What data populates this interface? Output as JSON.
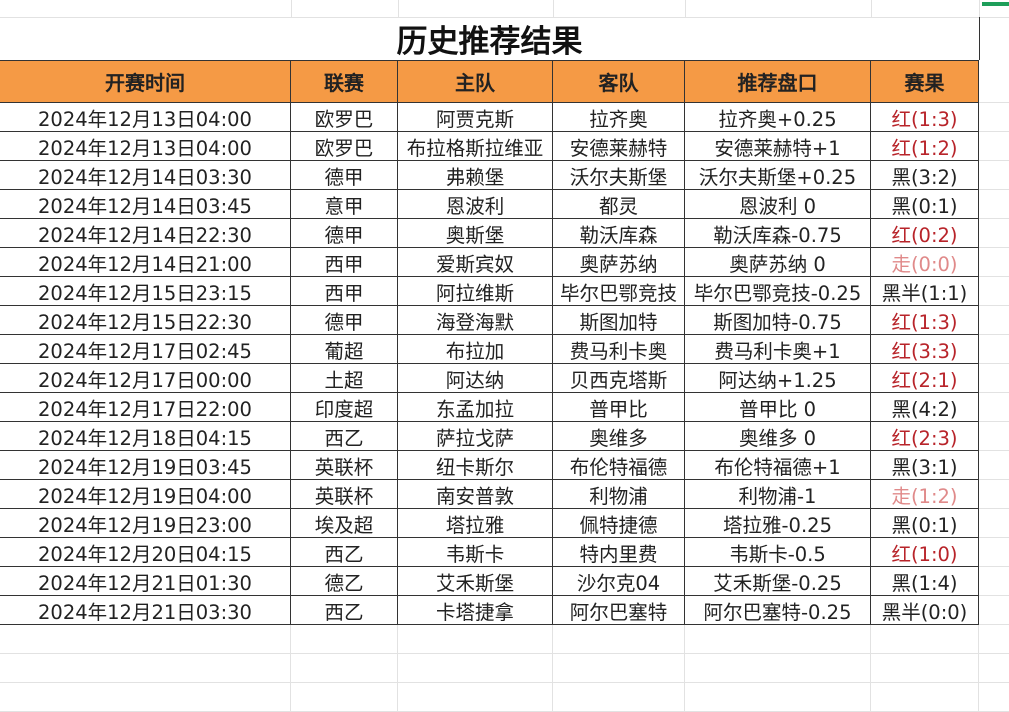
{
  "sheet": {
    "title": "历史推荐结果",
    "columns": [
      "开赛时间",
      "联赛",
      "主队",
      "客队",
      "推荐盘口",
      "赛果"
    ],
    "rows": [
      {
        "time": "2024年12月13日04:00",
        "league": "欧罗巴",
        "home": "阿贾克斯",
        "away": "拉齐奥",
        "pick": "拉齐奥+0.25",
        "result": "红(1:3)",
        "status": "red"
      },
      {
        "time": "2024年12月13日04:00",
        "league": "欧罗巴",
        "home": "布拉格斯拉维亚",
        "away": "安德莱赫特",
        "pick": "安德莱赫特+1",
        "result": "红(1:2)",
        "status": "red"
      },
      {
        "time": "2024年12月14日03:30",
        "league": "德甲",
        "home": "弗赖堡",
        "away": "沃尔夫斯堡",
        "pick": "沃尔夫斯堡+0.25",
        "result": "黑(3:2)",
        "status": "black"
      },
      {
        "time": "2024年12月14日03:45",
        "league": "意甲",
        "home": "恩波利",
        "away": "都灵",
        "pick": "恩波利 0",
        "result": "黑(0:1)",
        "status": "black"
      },
      {
        "time": "2024年12月14日22:30",
        "league": "德甲",
        "home": "奥斯堡",
        "away": "勒沃库森",
        "pick": "勒沃库森-0.75",
        "result": "红(0:2)",
        "status": "red"
      },
      {
        "time": "2024年12月14日21:00",
        "league": "西甲",
        "home": "爱斯宾奴",
        "away": "奥萨苏纳",
        "pick": "奥萨苏纳 0",
        "result": "走(0:0)",
        "status": "push"
      },
      {
        "time": "2024年12月15日23:15",
        "league": "西甲",
        "home": "阿拉维斯",
        "away": "毕尔巴鄂竞技",
        "pick": "毕尔巴鄂竞技-0.25",
        "result": "黑半(1:1)",
        "status": "black"
      },
      {
        "time": "2024年12月15日22:30",
        "league": "德甲",
        "home": "海登海默",
        "away": "斯图加特",
        "pick": "斯图加特-0.75",
        "result": "红(1:3)",
        "status": "red"
      },
      {
        "time": "2024年12月17日02:45",
        "league": "葡超",
        "home": "布拉加",
        "away": "费马利卡奥",
        "pick": "费马利卡奥+1",
        "result": "红(3:3)",
        "status": "red"
      },
      {
        "time": "2024年12月17日00:00",
        "league": "土超",
        "home": "阿达纳",
        "away": "贝西克塔斯",
        "pick": "阿达纳+1.25",
        "result": "红(2:1)",
        "status": "red"
      },
      {
        "time": "2024年12月17日22:00",
        "league": "印度超",
        "home": "东孟加拉",
        "away": "普甲比",
        "pick": "普甲比 0",
        "result": "黑(4:2)",
        "status": "black"
      },
      {
        "time": "2024年12月18日04:15",
        "league": "西乙",
        "home": "萨拉戈萨",
        "away": "奥维多",
        "pick": "奥维多 0",
        "result": "红(2:3)",
        "status": "red"
      },
      {
        "time": "2024年12月19日03:45",
        "league": "英联杯",
        "home": "纽卡斯尔",
        "away": "布伦特福德",
        "pick": "布伦特福德+1",
        "result": "黑(3:1)",
        "status": "black"
      },
      {
        "time": "2024年12月19日04:00",
        "league": "英联杯",
        "home": "南安普敦",
        "away": "利物浦",
        "pick": "利物浦-1",
        "result": "走(1:2)",
        "status": "push"
      },
      {
        "time": "2024年12月19日23:00",
        "league": "埃及超",
        "home": "塔拉雅",
        "away": "佩特捷德",
        "pick": "塔拉雅-0.25",
        "result": "黑(0:1)",
        "status": "black"
      },
      {
        "time": "2024年12月20日04:15",
        "league": "西乙",
        "home": "韦斯卡",
        "away": "特内里费",
        "pick": "韦斯卡-0.5",
        "result": "红(1:0)",
        "status": "red"
      },
      {
        "time": "2024年12月21日01:30",
        "league": "德乙",
        "home": "艾禾斯堡",
        "away": "沙尔克04",
        "pick": "艾禾斯堡-0.25",
        "result": "黑(1:4)",
        "status": "black"
      },
      {
        "time": "2024年12月21日03:30",
        "league": "西乙",
        "home": "卡塔捷拿",
        "away": "阿尔巴塞特",
        "pick": "阿尔巴塞特-0.25",
        "result": "黑半(0:0)",
        "status": "black"
      }
    ]
  },
  "colors": {
    "header_bg": "#f59a45",
    "red_result": "#b8242a",
    "push_result": "#e08a8a"
  }
}
